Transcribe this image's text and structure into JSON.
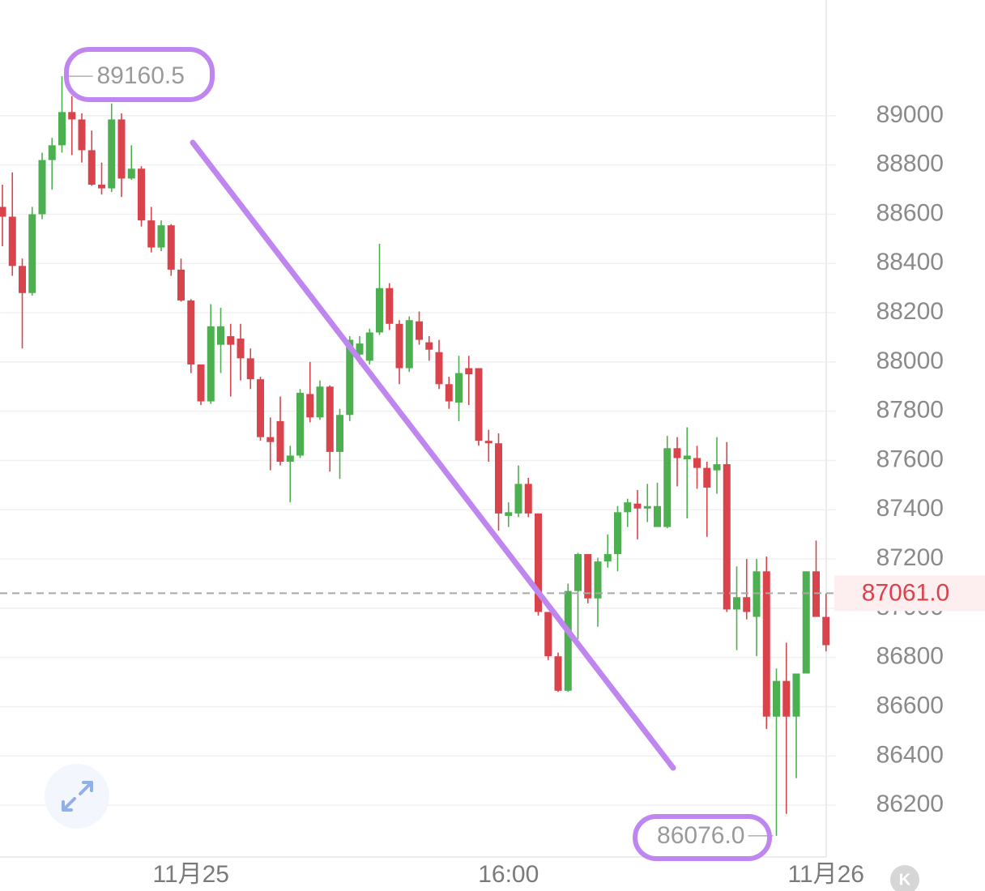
{
  "chart_data": {
    "type": "candlestick",
    "categories": [
      null,
      null,
      null,
      null,
      null,
      null,
      null,
      null,
      null,
      null,
      null,
      null,
      null,
      null,
      null,
      null,
      null,
      null,
      null,
      "11月25",
      null,
      null,
      null,
      null,
      null,
      null,
      null,
      null,
      null,
      null,
      null,
      null,
      null,
      null,
      null,
      null,
      null,
      null,
      null,
      null,
      null,
      null,
      null,
      null,
      null,
      null,
      null,
      null,
      null,
      null,
      null,
      "16:00",
      null,
      null,
      null,
      null,
      null,
      null,
      null,
      null,
      null,
      null,
      null,
      null,
      null,
      null,
      null,
      null,
      null,
      null,
      null,
      null,
      null,
      null,
      null,
      null,
      null,
      null,
      null,
      null,
      null,
      null,
      null,
      "11月26"
    ],
    "open": [
      88630,
      88590,
      88390,
      88280,
      88600,
      88820,
      88880,
      89015,
      88985,
      88860,
      88720,
      88705,
      88985,
      88745,
      88785,
      88575,
      88465,
      88555,
      88375,
      88250,
      87990,
      87840,
      88070,
      88105,
      88095,
      88015,
      87930,
      87695,
      87760,
      87595,
      87620,
      87870,
      87775,
      87900,
      87635,
      87785,
      88030,
      88005,
      88120,
      88300,
      88155,
      87975,
      88165,
      88080,
      88040,
      87910,
      87835,
      87975,
      87975,
      87680,
      87670,
      87375,
      87385,
      87505,
      87385,
      86985,
      86805,
      86665,
      87070,
      87220,
      87040,
      87190,
      87220,
      87390,
      87425,
      87405,
      87330,
      87330,
      87650,
      87605,
      87610,
      87570,
      87560,
      87585,
      86995,
      87045,
      86965,
      87150,
      86560,
      86705,
      86560,
      86735,
      87150,
      86965
    ],
    "high": [
      88720,
      88770,
      88420,
      88630,
      88850,
      88910,
      89160.5,
      89080,
      89010,
      88940,
      88810,
      89050,
      89010,
      88880,
      88795,
      88630,
      88575,
      88560,
      88420,
      88255,
      87990,
      88235,
      88220,
      88155,
      88155,
      88055,
      87940,
      87775,
      87860,
      87660,
      87890,
      88000,
      87925,
      87905,
      87810,
      88105,
      88105,
      88135,
      88480,
      88320,
      88170,
      88185,
      88205,
      88105,
      88090,
      87940,
      88025,
      88025,
      87975,
      87725,
      87710,
      87430,
      87580,
      87530,
      87385,
      86985,
      86820,
      87100,
      87225,
      87220,
      87205,
      87300,
      87415,
      87445,
      87480,
      87505,
      87510,
      87700,
      87695,
      87735,
      87660,
      87595,
      87695,
      87675,
      87170,
      87200,
      87200,
      87210,
      86755,
      86860,
      86735,
      87150,
      87275,
      87060
    ],
    "low": [
      88470,
      88350,
      88055,
      88270,
      88580,
      88700,
      88850,
      88840,
      88810,
      88715,
      88680,
      88690,
      88670,
      88740,
      88550,
      88445,
      88450,
      88350,
      88245,
      87955,
      87825,
      87830,
      87955,
      87860,
      87925,
      87890,
      87680,
      87560,
      87580,
      87430,
      87610,
      87755,
      87765,
      87555,
      87525,
      87760,
      87990,
      87990,
      88110,
      88130,
      87910,
      87960,
      88070,
      88005,
      87890,
      87810,
      87760,
      87825,
      87660,
      87595,
      87315,
      87330,
      87370,
      87370,
      86970,
      86790,
      86660,
      86660,
      86875,
      87020,
      86925,
      87165,
      87150,
      87330,
      87280,
      87350,
      87330,
      87325,
      87495,
      87365,
      87485,
      87290,
      87465,
      86985,
      86830,
      86955,
      86805,
      86510,
      86076,
      86165,
      86310,
      86735,
      86965,
      86825
    ],
    "close": [
      88590,
      88390,
      88280,
      88600,
      88820,
      88880,
      89015,
      88985,
      88860,
      88720,
      88705,
      88985,
      88745,
      88785,
      88575,
      88465,
      88555,
      88375,
      88250,
      87990,
      87840,
      88145,
      88145,
      88070,
      88015,
      87930,
      87695,
      87675,
      87595,
      87620,
      87875,
      87775,
      87900,
      87635,
      87785,
      88090,
      88075,
      88120,
      88300,
      88155,
      87975,
      88170,
      88090,
      88050,
      87910,
      87840,
      87955,
      87950,
      87680,
      87670,
      87385,
      87390,
      87505,
      87385,
      86985,
      86805,
      86665,
      87070,
      87220,
      87040,
      87190,
      87220,
      87390,
      87430,
      87405,
      87415,
      87415,
      87650,
      87610,
      87620,
      87570,
      87490,
      87585,
      86995,
      87045,
      86985,
      87150,
      86560,
      86705,
      86560,
      86735,
      87150,
      86965,
      86850
    ],
    "up_color": "#4caf50",
    "down_color": "#d9434b",
    "ylim": [
      85990,
      89470
    ],
    "yticks": [
      86200,
      86400,
      86600,
      86800,
      87000,
      87200,
      87400,
      87600,
      87800,
      88000,
      88200,
      88400,
      88600,
      88800,
      89000
    ],
    "grid": true,
    "high_label": {
      "value": 89160.5,
      "label": "89160.5"
    },
    "low_label": {
      "value": 86076,
      "label": "86076.0"
    },
    "last_price": {
      "value": 87061,
      "label": "87061.0"
    },
    "button_label": "K"
  }
}
